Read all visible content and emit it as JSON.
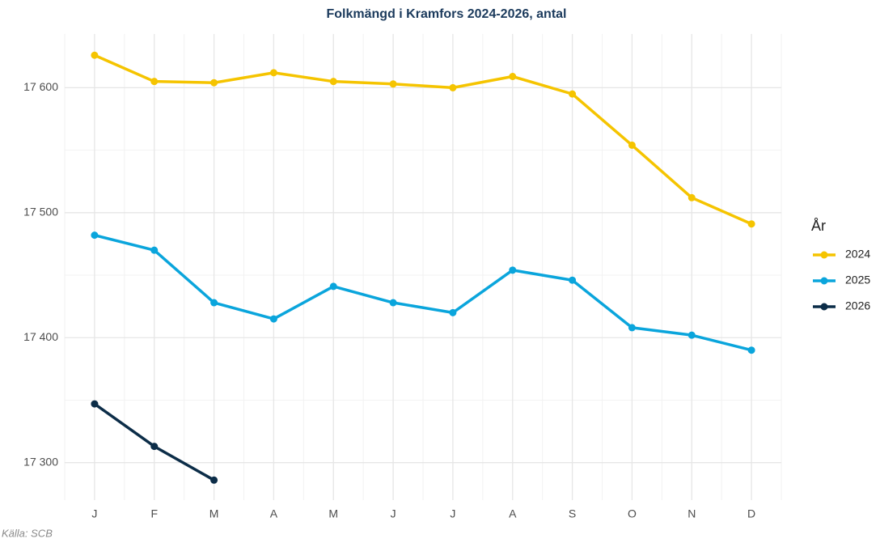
{
  "chart_data": {
    "type": "line",
    "title": "Folkmängd i Kramfors 2024-2026, antal",
    "legend_title": "År",
    "caption": "Källa: SCB",
    "categories": [
      "J",
      "F",
      "M",
      "A",
      "M",
      "J",
      "J",
      "A",
      "S",
      "O",
      "N",
      "D"
    ],
    "series": [
      {
        "name": "2024",
        "color": "#f5c400",
        "values": [
          17626,
          17605,
          17604,
          17612,
          17605,
          17603,
          17600,
          17609,
          17595,
          17554,
          17512,
          17491
        ]
      },
      {
        "name": "2025",
        "color": "#0aa5dc",
        "values": [
          17482,
          17470,
          17428,
          17415,
          17441,
          17428,
          17420,
          17454,
          17446,
          17408,
          17402,
          17390
        ]
      },
      {
        "name": "2026",
        "color": "#0c2d48",
        "values": [
          17347,
          17313,
          17286,
          null,
          null,
          null,
          null,
          null,
          null,
          null,
          null,
          null
        ]
      }
    ],
    "ylim": [
      17270,
      17643
    ],
    "yticks": [
      {
        "value": 17300,
        "label": "17 300"
      },
      {
        "value": 17400,
        "label": "17 400"
      },
      {
        "value": 17500,
        "label": "17 500"
      },
      {
        "value": 17600,
        "label": "17 600"
      }
    ],
    "grid": true,
    "legend": "right"
  }
}
